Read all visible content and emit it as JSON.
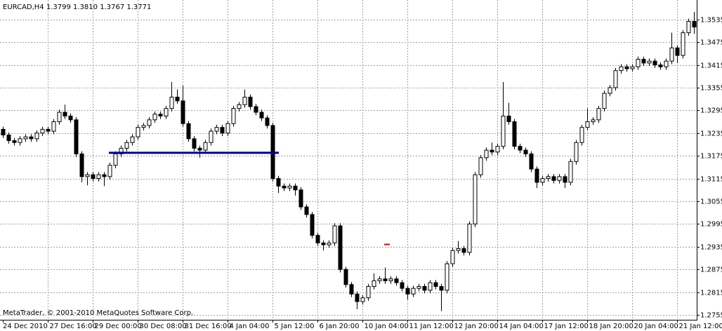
{
  "chart_data": {
    "type": "candlestick",
    "title": "EURCAD,H4  1.3799 1.3810 1.3767 1.3771",
    "footer": "MetaTrader, © 2001-2010 MetaQuotes Software Corp.",
    "categories": [
      "24 Dec 2010",
      null,
      null,
      null,
      null,
      null,
      null,
      null,
      "27 Dec 16:00",
      null,
      null,
      null,
      null,
      null,
      null,
      null,
      "29 Dec 00:00",
      null,
      null,
      null,
      null,
      null,
      null,
      null,
      "30 Dec 08:00",
      null,
      null,
      null,
      null,
      null,
      null,
      null,
      "31 Dec 16:00",
      null,
      null,
      null,
      null,
      null,
      null,
      null,
      "4 Jan 04:00",
      null,
      null,
      null,
      null,
      null,
      null,
      null,
      "5 Jan 12:00",
      null,
      null,
      null,
      null,
      null,
      null,
      null,
      "6 Jan 20:00",
      null,
      null,
      null,
      null,
      null,
      null,
      null,
      "10 Jan 04:00",
      null,
      null,
      null,
      null,
      null,
      null,
      null,
      "11 Jan 12:00",
      null,
      null,
      null,
      null,
      null,
      null,
      null,
      "12 Jan 20:00",
      null,
      null,
      null,
      null,
      null,
      null,
      null,
      "14 Jan 04:00",
      null,
      null,
      null,
      null,
      null,
      null,
      null,
      "17 Jan 12:00",
      null,
      null,
      null,
      null,
      null,
      null,
      null,
      "18 Jan 20:00",
      null,
      null,
      null,
      null,
      null,
      null,
      null,
      "20 Jan 04:00",
      null,
      null,
      null,
      null,
      null,
      null,
      null,
      "21 Jan 12:00",
      null,
      null,
      null
    ],
    "open": [
      1.3245,
      1.323,
      1.3215,
      1.321,
      1.322,
      1.3225,
      1.322,
      1.3235,
      1.3245,
      1.324,
      1.3265,
      1.329,
      1.328,
      1.327,
      1.318,
      1.312,
      1.3125,
      1.3115,
      1.3125,
      1.312,
      1.315,
      1.318,
      1.3195,
      1.321,
      1.3225,
      1.325,
      1.3255,
      1.327,
      1.3285,
      1.328,
      1.33,
      1.333,
      1.332,
      1.326,
      1.322,
      1.3195,
      1.319,
      1.321,
      1.324,
      1.325,
      1.3235,
      1.326,
      1.33,
      1.331,
      1.333,
      1.3305,
      1.329,
      1.3275,
      1.3255,
      1.3115,
      1.3095,
      1.309,
      1.3095,
      1.3085,
      1.304,
      1.302,
      1.2965,
      1.2945,
      1.294,
      1.2945,
      1.299,
      1.2875,
      1.2835,
      1.281,
      1.279,
      1.28,
      1.283,
      1.2845,
      1.285,
      1.2845,
      1.285,
      1.284,
      1.2825,
      1.281,
      1.2825,
      1.283,
      1.282,
      1.284,
      1.283,
      1.282,
      1.289,
      1.2925,
      1.293,
      1.292,
      1.2995,
      1.3125,
      1.317,
      1.319,
      1.3185,
      1.32,
      1.328,
      1.3265,
      1.32,
      1.319,
      1.318,
      1.314,
      1.3105,
      1.3115,
      1.312,
      1.311,
      1.312,
      1.3105,
      1.316,
      1.321,
      1.325,
      1.3265,
      1.327,
      1.33,
      1.334,
      1.3355,
      1.34,
      1.341,
      1.3405,
      1.341,
      1.343,
      1.342,
      1.3425,
      1.3415,
      1.341,
      1.3425,
      1.346,
      1.344,
      1.35,
      1.353
    ],
    "high": [
      1.3252,
      1.3237,
      1.3222,
      1.3227,
      1.3232,
      1.3232,
      1.3242,
      1.3252,
      1.3252,
      1.3272,
      1.3297,
      1.331,
      1.3287,
      1.3277,
      1.3187,
      1.3132,
      1.3132,
      1.3132,
      1.3132,
      1.3157,
      1.3187,
      1.3202,
      1.3217,
      1.3232,
      1.3257,
      1.3262,
      1.3277,
      1.3292,
      1.3292,
      1.3307,
      1.337,
      1.335,
      1.336,
      1.3267,
      1.3227,
      1.3202,
      1.3217,
      1.3247,
      1.3257,
      1.3257,
      1.3267,
      1.3307,
      1.3317,
      1.335,
      1.3337,
      1.3312,
      1.3297,
      1.3282,
      1.3262,
      1.3122,
      1.3102,
      1.3102,
      1.3102,
      1.3092,
      1.3047,
      1.3027,
      1.2972,
      1.2952,
      1.2952,
      1.2997,
      1.2997,
      1.2882,
      1.2842,
      1.2817,
      1.2807,
      1.2837,
      1.2865,
      1.2857,
      1.288,
      1.2857,
      1.2857,
      1.2847,
      1.2832,
      1.2832,
      1.2837,
      1.2837,
      1.2847,
      1.2847,
      1.2837,
      1.2897,
      1.2932,
      1.295,
      1.2937,
      1.3002,
      1.3132,
      1.3177,
      1.3197,
      1.321,
      1.3207,
      1.337,
      1.3315,
      1.3272,
      1.3207,
      1.3197,
      1.3187,
      1.3147,
      1.3122,
      1.3127,
      1.3127,
      1.3127,
      1.3127,
      1.3167,
      1.3217,
      1.3257,
      1.33,
      1.3277,
      1.3307,
      1.3347,
      1.3362,
      1.3407,
      1.3417,
      1.3417,
      1.3417,
      1.3437,
      1.3437,
      1.3432,
      1.3432,
      1.3422,
      1.3432,
      1.35,
      1.3467,
      1.3507,
      1.3537,
      1.3555
    ],
    "low": [
      1.3222,
      1.3207,
      1.3202,
      1.3202,
      1.3212,
      1.3212,
      1.3212,
      1.3227,
      1.3232,
      1.3232,
      1.3257,
      1.3272,
      1.3262,
      1.3172,
      1.3105,
      1.3097,
      1.3107,
      1.3107,
      1.3095,
      1.3112,
      1.3142,
      1.3172,
      1.3187,
      1.3202,
      1.3217,
      1.3242,
      1.3247,
      1.3262,
      1.3272,
      1.3272,
      1.3292,
      1.3312,
      1.3252,
      1.3212,
      1.3187,
      1.317,
      1.3182,
      1.3202,
      1.3232,
      1.3227,
      1.3227,
      1.3252,
      1.3292,
      1.3302,
      1.3297,
      1.3282,
      1.3267,
      1.3247,
      1.3107,
      1.3077,
      1.3082,
      1.3082,
      1.307,
      1.3032,
      1.3012,
      1.2957,
      1.2937,
      1.2925,
      1.2932,
      1.2937,
      1.2867,
      1.2827,
      1.2802,
      1.277,
      1.2782,
      1.2792,
      1.2822,
      1.2837,
      1.2837,
      1.2837,
      1.2832,
      1.2817,
      1.2795,
      1.2802,
      1.2817,
      1.2812,
      1.2812,
      1.2822,
      1.2765,
      1.2812,
      1.2882,
      1.2917,
      1.2912,
      1.2912,
      1.2987,
      1.3117,
      1.3162,
      1.3177,
      1.3177,
      1.3192,
      1.3257,
      1.3192,
      1.3182,
      1.3172,
      1.3132,
      1.309,
      1.3097,
      1.3107,
      1.3102,
      1.3102,
      1.309,
      1.3097,
      1.3152,
      1.3202,
      1.3242,
      1.3257,
      1.3262,
      1.3292,
      1.3332,
      1.3347,
      1.3392,
      1.3397,
      1.3397,
      1.3402,
      1.3412,
      1.3412,
      1.3407,
      1.3402,
      1.3402,
      1.3417,
      1.342,
      1.3432,
      1.3492,
      1.3497
    ],
    "close": [
      1.323,
      1.3215,
      1.321,
      1.322,
      1.3225,
      1.322,
      1.3235,
      1.3245,
      1.324,
      1.3265,
      1.329,
      1.328,
      1.327,
      1.318,
      1.312,
      1.3125,
      1.3115,
      1.3125,
      1.312,
      1.315,
      1.318,
      1.3195,
      1.321,
      1.3225,
      1.325,
      1.3255,
      1.327,
      1.3285,
      1.328,
      1.33,
      1.333,
      1.332,
      1.326,
      1.322,
      1.3195,
      1.319,
      1.321,
      1.324,
      1.325,
      1.3235,
      1.326,
      1.33,
      1.331,
      1.333,
      1.3305,
      1.329,
      1.3275,
      1.3255,
      1.3115,
      1.3095,
      1.309,
      1.3095,
      1.3085,
      1.304,
      1.302,
      1.2965,
      1.2945,
      1.294,
      1.2945,
      1.299,
      1.2875,
      1.2835,
      1.281,
      1.279,
      1.28,
      1.283,
      1.2845,
      1.285,
      1.2845,
      1.285,
      1.284,
      1.2825,
      1.281,
      1.2825,
      1.283,
      1.282,
      1.284,
      1.283,
      1.282,
      1.289,
      1.2925,
      1.293,
      1.292,
      1.2995,
      1.3125,
      1.317,
      1.319,
      1.3185,
      1.32,
      1.328,
      1.3265,
      1.32,
      1.319,
      1.318,
      1.314,
      1.3105,
      1.3115,
      1.312,
      1.311,
      1.312,
      1.3105,
      1.316,
      1.321,
      1.325,
      1.3265,
      1.327,
      1.33,
      1.334,
      1.3355,
      1.34,
      1.341,
      1.3405,
      1.341,
      1.343,
      1.342,
      1.3425,
      1.3415,
      1.341,
      1.3425,
      1.346,
      1.344,
      1.35,
      1.353,
      1.3515
    ],
    "trend_line_price": 1.3183,
    "marker_price": 1.2941,
    "ylim": [
      1.2742,
      1.3579
    ],
    "yticks": [
      1.3535,
      1.3475,
      1.3415,
      1.3355,
      1.3295,
      1.3235,
      1.3175,
      1.3115,
      1.3055,
      1.2995,
      1.2935,
      1.2875,
      1.2815,
      1.2755
    ],
    "grid": true,
    "bull_color": "#ffffff",
    "bear_color": "#000000",
    "trend_line_color": "#0000a0",
    "marker_color": "#e00000"
  }
}
